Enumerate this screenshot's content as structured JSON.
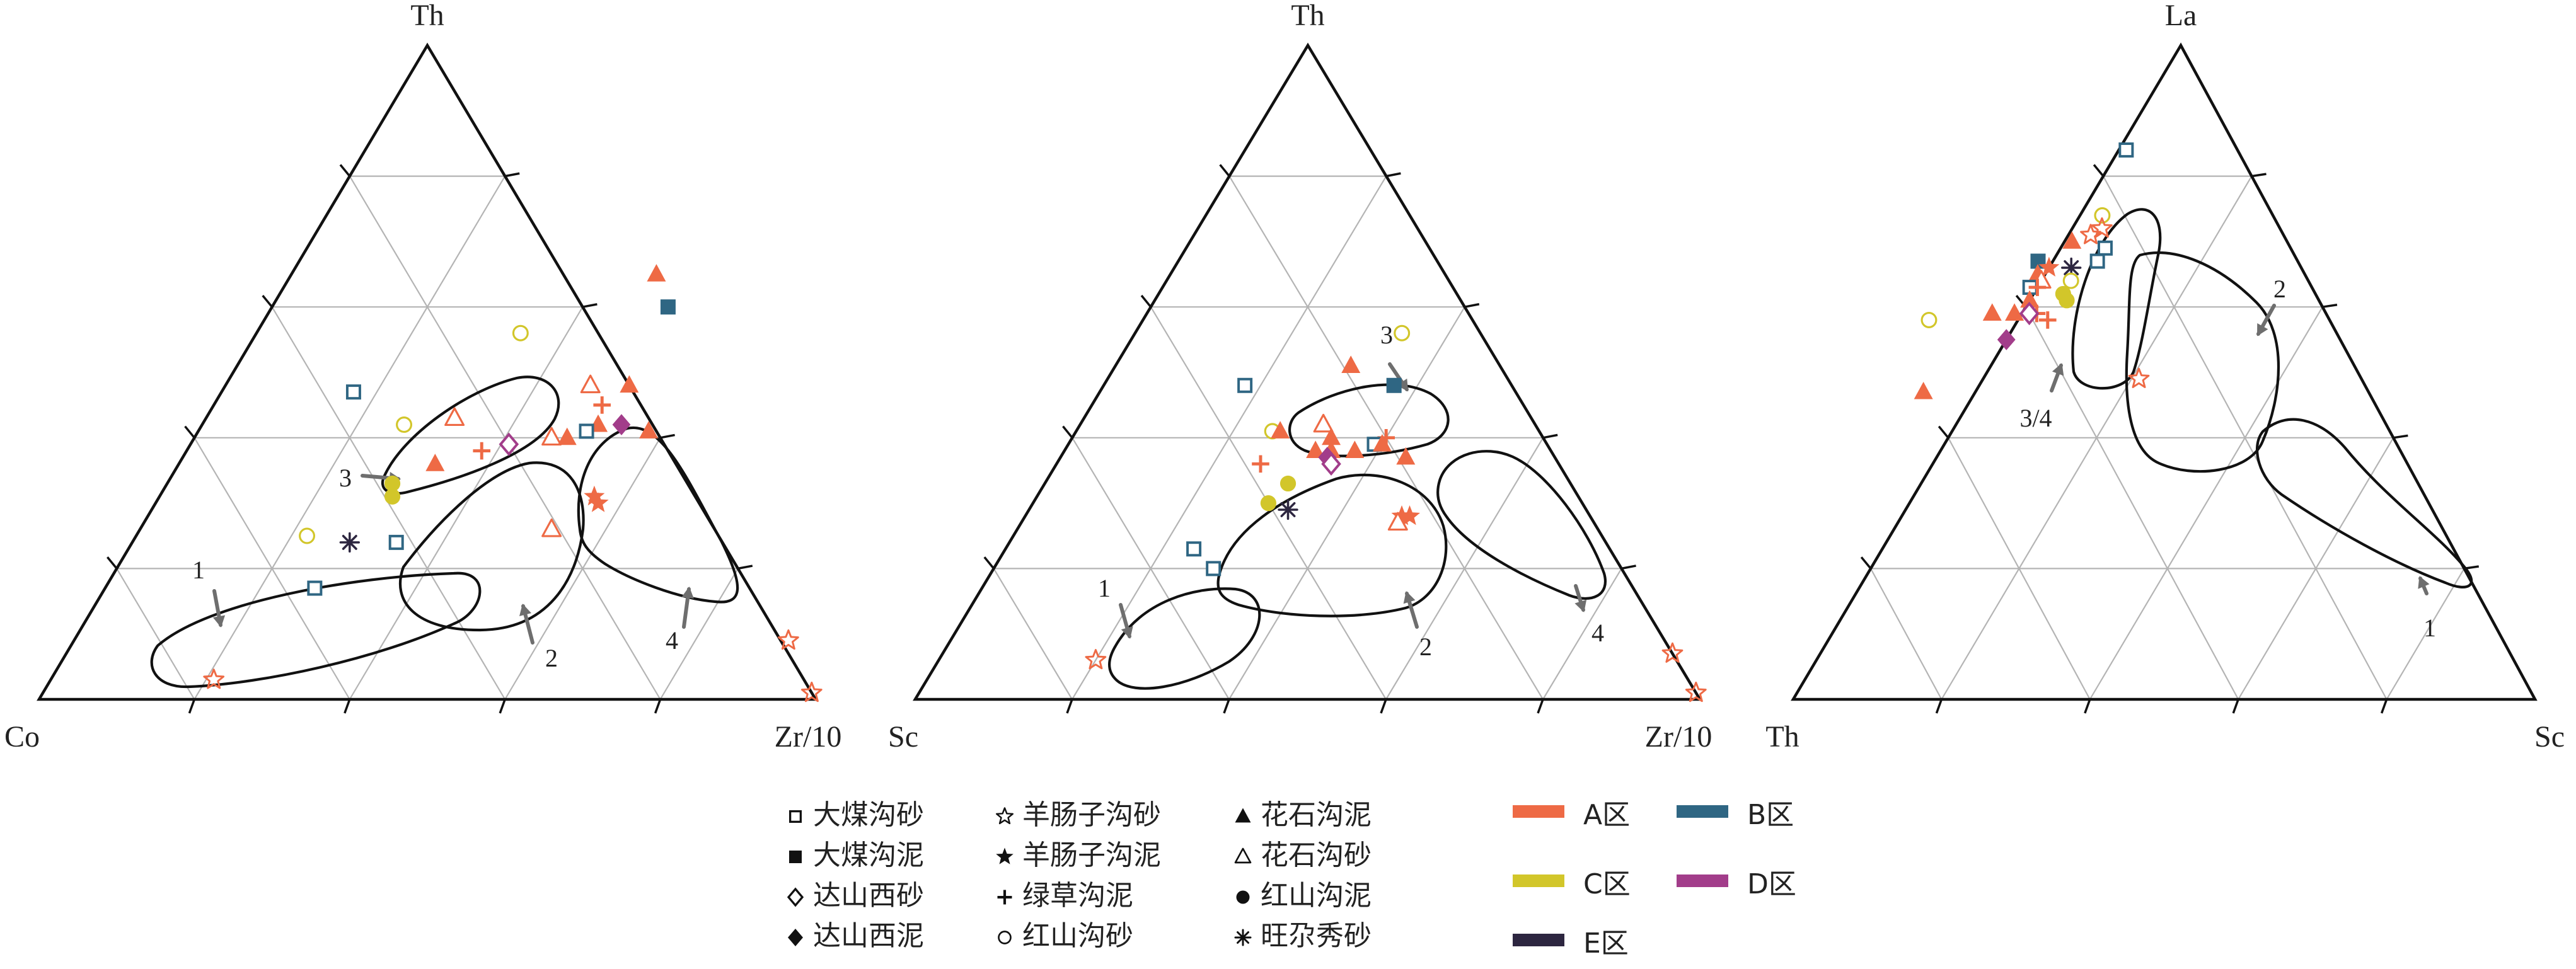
{
  "colors": {
    "A": "#ee6a45",
    "B": "#2f6683",
    "C": "#d2c62a",
    "D": "#a23d8a",
    "E": "#2d2640",
    "ink": "#111111",
    "grid": "#b4b4b4",
    "arrow": "#6e6e6e"
  },
  "legend": {
    "symbols": [
      {
        "label": "大煤沟砂",
        "shape": "open-square"
      },
      {
        "label": "大煤沟泥",
        "shape": "filled-square"
      },
      {
        "label": "达山西砂",
        "shape": "open-diamond"
      },
      {
        "label": "达山西泥",
        "shape": "filled-diamond"
      },
      {
        "label": "羊肠子沟砂",
        "shape": "open-star"
      },
      {
        "label": "羊肠子沟泥",
        "shape": "filled-star"
      },
      {
        "label": "绿草沟泥",
        "shape": "plus"
      },
      {
        "label": "红山沟砂",
        "shape": "open-circle"
      },
      {
        "label": "花石沟泥",
        "shape": "filled-triangle"
      },
      {
        "label": "花石沟砂",
        "shape": "open-triangle"
      },
      {
        "label": "红山沟泥",
        "shape": "filled-circle"
      },
      {
        "label": "旺尕秀砂",
        "shape": "asterisk"
      }
    ],
    "regions": [
      {
        "label": "A区",
        "color": "#ee6a45"
      },
      {
        "label": "B区",
        "color": "#2f6683"
      },
      {
        "label": "C区",
        "color": "#d2c62a"
      },
      {
        "label": "D区",
        "color": "#a23d8a"
      },
      {
        "label": "E区",
        "color": "#2d2640"
      }
    ]
  },
  "chart_data": [
    {
      "type": "scatter",
      "subtype": "ternary",
      "vertices": {
        "top": "Th",
        "left": "Co",
        "right": "Zr/10"
      },
      "grid_step": 0.2,
      "field_labels": [
        "1",
        "2",
        "3",
        "4"
      ],
      "points": [
        {
          "top": 0.65,
          "right": 0.47,
          "shape": "filled-triangle",
          "region": "A"
        },
        {
          "top": 0.6,
          "right": 0.51,
          "shape": "filled-square",
          "region": "B"
        },
        {
          "top": 0.56,
          "right": 0.34,
          "shape": "open-circle",
          "region": "C"
        },
        {
          "top": 0.48,
          "right": 0.52,
          "shape": "filled-triangle",
          "region": "A"
        },
        {
          "top": 0.48,
          "right": 0.47,
          "shape": "open-triangle",
          "region": "A"
        },
        {
          "top": 0.45,
          "right": 0.5,
          "shape": "plus",
          "region": "A"
        },
        {
          "top": 0.47,
          "right": 0.17,
          "shape": "open-square",
          "region": "B"
        },
        {
          "top": 0.43,
          "right": 0.32,
          "shape": "open-triangle",
          "region": "A"
        },
        {
          "top": 0.42,
          "right": 0.26,
          "shape": "open-circle",
          "region": "C"
        },
        {
          "top": 0.42,
          "right": 0.54,
          "shape": "filled-diamond",
          "region": "D"
        },
        {
          "top": 0.42,
          "right": 0.51,
          "shape": "filled-triangle",
          "region": "A"
        },
        {
          "top": 0.41,
          "right": 0.5,
          "shape": "open-square",
          "region": "B"
        },
        {
          "top": 0.41,
          "right": 0.58,
          "shape": "filled-triangle",
          "region": "A"
        },
        {
          "top": 0.4,
          "right": 0.46,
          "shape": "open-triangle",
          "region": "A"
        },
        {
          "top": 0.4,
          "right": 0.48,
          "shape": "filled-triangle",
          "region": "A"
        },
        {
          "top": 0.39,
          "right": 0.41,
          "shape": "open-diamond",
          "region": "D"
        },
        {
          "top": 0.38,
          "right": 0.38,
          "shape": "plus",
          "region": "A"
        },
        {
          "top": 0.36,
          "right": 0.33,
          "shape": "filled-triangle",
          "region": "A"
        },
        {
          "top": 0.33,
          "right": 0.29,
          "shape": "filled-circle",
          "region": "C"
        },
        {
          "top": 0.31,
          "right": 0.3,
          "shape": "filled-circle",
          "region": "C"
        },
        {
          "top": 0.31,
          "right": 0.56,
          "shape": "filled-star",
          "region": "A"
        },
        {
          "top": 0.3,
          "right": 0.57,
          "shape": "filled-star",
          "region": "A"
        },
        {
          "top": 0.26,
          "right": 0.53,
          "shape": "open-triangle",
          "region": "A"
        },
        {
          "top": 0.25,
          "right": 0.22,
          "shape": "open-circle",
          "region": "C"
        },
        {
          "top": 0.24,
          "right": 0.28,
          "shape": "asterisk",
          "region": "E"
        },
        {
          "top": 0.24,
          "right": 0.34,
          "shape": "open-square",
          "region": "B"
        },
        {
          "top": 0.17,
          "right": 0.27,
          "shape": "open-square",
          "region": "B"
        },
        {
          "top": 0.09,
          "right": 0.92,
          "shape": "open-star",
          "region": "A"
        },
        {
          "top": 0.03,
          "right": 0.21,
          "shape": "open-star",
          "region": "A"
        },
        {
          "top": 0.01,
          "right": 0.99,
          "shape": "open-star",
          "region": "A"
        }
      ]
    },
    {
      "type": "scatter",
      "subtype": "ternary",
      "vertices": {
        "top": "Th",
        "left": "Sc",
        "right": "Zr/10"
      },
      "grid_step": 0.2,
      "field_labels": [
        "1",
        "2",
        "3",
        "4"
      ],
      "points": [
        {
          "top": 0.56,
          "right": 0.34,
          "shape": "open-circle",
          "region": "C"
        },
        {
          "top": 0.51,
          "right": 0.3,
          "shape": "filled-triangle",
          "region": "A"
        },
        {
          "top": 0.48,
          "right": 0.18,
          "shape": "open-square",
          "region": "B"
        },
        {
          "top": 0.48,
          "right": 0.37,
          "shape": "filled-square",
          "region": "B"
        },
        {
          "top": 0.42,
          "right": 0.31,
          "shape": "open-triangle",
          "region": "A"
        },
        {
          "top": 0.41,
          "right": 0.25,
          "shape": "open-circle",
          "region": "C"
        },
        {
          "top": 0.41,
          "right": 0.26,
          "shape": "filled-triangle",
          "region": "A"
        },
        {
          "top": 0.4,
          "right": 0.33,
          "shape": "filled-triangle",
          "region": "A"
        },
        {
          "top": 0.4,
          "right": 0.4,
          "shape": "plus",
          "region": "A"
        },
        {
          "top": 0.39,
          "right": 0.39,
          "shape": "open-square",
          "region": "B"
        },
        {
          "top": 0.39,
          "right": 0.4,
          "shape": "filled-triangle",
          "region": "A"
        },
        {
          "top": 0.38,
          "right": 0.32,
          "shape": "filled-triangle",
          "region": "A"
        },
        {
          "top": 0.38,
          "right": 0.34,
          "shape": "filled-triangle",
          "region": "A"
        },
        {
          "top": 0.38,
          "right": 0.37,
          "shape": "filled-triangle",
          "region": "A"
        },
        {
          "top": 0.37,
          "right": 0.44,
          "shape": "filled-triangle",
          "region": "A"
        },
        {
          "top": 0.37,
          "right": 0.34,
          "shape": "filled-diamond",
          "region": "D"
        },
        {
          "top": 0.36,
          "right": 0.26,
          "shape": "plus",
          "region": "A"
        },
        {
          "top": 0.36,
          "right": 0.35,
          "shape": "open-diamond",
          "region": "D"
        },
        {
          "top": 0.33,
          "right": 0.31,
          "shape": "filled-circle",
          "region": "C"
        },
        {
          "top": 0.3,
          "right": 0.3,
          "shape": "filled-circle",
          "region": "C"
        },
        {
          "top": 0.29,
          "right": 0.33,
          "shape": "asterisk",
          "region": "E"
        },
        {
          "top": 0.28,
          "right": 0.48,
          "shape": "filled-star",
          "region": "A"
        },
        {
          "top": 0.28,
          "right": 0.49,
          "shape": "filled-star",
          "region": "A"
        },
        {
          "top": 0.27,
          "right": 0.48,
          "shape": "open-triangle",
          "region": "A"
        },
        {
          "top": 0.23,
          "right": 0.24,
          "shape": "open-square",
          "region": "B"
        },
        {
          "top": 0.2,
          "right": 0.28,
          "shape": "open-square",
          "region": "B"
        },
        {
          "top": 0.07,
          "right": 0.93,
          "shape": "open-star",
          "region": "A"
        },
        {
          "top": 0.06,
          "right": 0.2,
          "shape": "open-star",
          "region": "A"
        },
        {
          "top": 0.01,
          "right": 0.99,
          "shape": "open-star",
          "region": "A"
        }
      ]
    },
    {
      "type": "scatter",
      "subtype": "ternary",
      "vertices": {
        "top": "La",
        "left": "Th",
        "right": "Sc"
      },
      "grid_step": 0.2,
      "field_labels": [
        "1",
        "2",
        "3/4"
      ],
      "points": [
        {
          "top": 0.84,
          "right": 0.01,
          "shape": "open-square",
          "region": "B"
        },
        {
          "top": 0.74,
          "right": 0.03,
          "shape": "open-circle",
          "region": "C"
        },
        {
          "top": 0.72,
          "right": 0.04,
          "shape": "open-star",
          "region": "A"
        },
        {
          "top": 0.71,
          "right": 0.03,
          "shape": "open-star",
          "region": "A"
        },
        {
          "top": 0.7,
          "right": 0.01,
          "shape": "filled-triangle",
          "region": "A"
        },
        {
          "top": 0.69,
          "right": 0.06,
          "shape": "open-square",
          "region": "B"
        },
        {
          "top": 0.67,
          "right": 0.06,
          "shape": "open-square",
          "region": "B"
        },
        {
          "top": 0.67,
          "right": -0.02,
          "shape": "filled-square",
          "region": "B"
        },
        {
          "top": 0.66,
          "right": 0.03,
          "shape": "asterisk",
          "region": "E"
        },
        {
          "top": 0.66,
          "right": 0.0,
          "shape": "filled-star",
          "region": "A"
        },
        {
          "top": 0.65,
          "right": -0.01,
          "shape": "filled-triangle",
          "region": "A"
        },
        {
          "top": 0.64,
          "right": 0.0,
          "shape": "open-triangle",
          "region": "A"
        },
        {
          "top": 0.64,
          "right": 0.04,
          "shape": "open-circle",
          "region": "C"
        },
        {
          "top": 0.63,
          "right": -0.01,
          "shape": "open-square",
          "region": "B"
        },
        {
          "top": 0.63,
          "right": 0.0,
          "shape": "plus",
          "region": "A"
        },
        {
          "top": 0.62,
          "right": 0.04,
          "shape": "filled-circle",
          "region": "C"
        },
        {
          "top": 0.61,
          "right": 0.05,
          "shape": "filled-circle",
          "region": "C"
        },
        {
          "top": 0.61,
          "right": 0.0,
          "shape": "filled-triangle",
          "region": "A"
        },
        {
          "top": 0.59,
          "right": -0.01,
          "shape": "filled-triangle",
          "region": "A"
        },
        {
          "top": 0.59,
          "right": -0.04,
          "shape": "filled-triangle",
          "region": "A"
        },
        {
          "top": 0.59,
          "right": 0.02,
          "shape": "plus",
          "region": "A"
        },
        {
          "top": 0.59,
          "right": 0.01,
          "shape": "open-diamond",
          "region": "D"
        },
        {
          "top": 0.58,
          "right": -0.12,
          "shape": "open-circle",
          "region": "C"
        },
        {
          "top": 0.58,
          "right": 0.04,
          "shape": "plus",
          "region": "A"
        },
        {
          "top": 0.55,
          "right": 0.0,
          "shape": "filled-diamond",
          "region": "D"
        },
        {
          "top": 0.49,
          "right": 0.21,
          "shape": "open-star",
          "region": "A"
        },
        {
          "top": 0.47,
          "right": -0.07,
          "shape": "filled-triangle",
          "region": "A"
        }
      ]
    }
  ]
}
